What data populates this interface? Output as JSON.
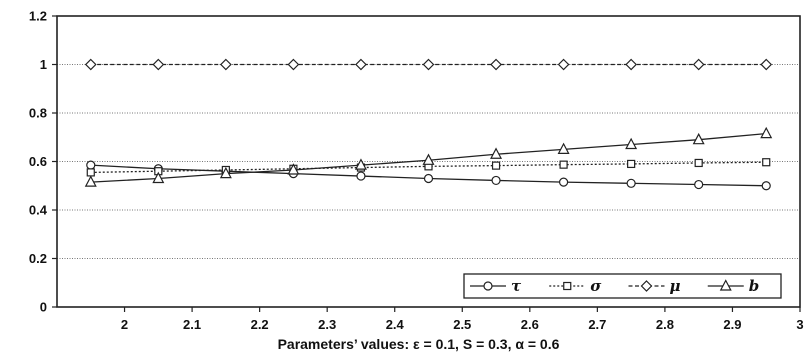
{
  "chart_data": {
    "type": "line",
    "x": [
      1.95,
      2.05,
      2.15,
      2.25,
      2.35,
      2.45,
      2.55,
      2.65,
      2.75,
      2.85,
      2.95
    ],
    "series": [
      {
        "name": "τ",
        "marker": "circle",
        "dash": "solid",
        "values": [
          0.585,
          0.57,
          0.56,
          0.55,
          0.54,
          0.53,
          0.522,
          0.515,
          0.51,
          0.505,
          0.5
        ]
      },
      {
        "name": "σ",
        "marker": "square",
        "dash": "dotted",
        "values": [
          0.555,
          0.56,
          0.565,
          0.57,
          0.575,
          0.58,
          0.583,
          0.587,
          0.59,
          0.594,
          0.597
        ]
      },
      {
        "name": "μ",
        "marker": "diamond",
        "dash": "dashed",
        "values": [
          1,
          1,
          1,
          1,
          1,
          1,
          1,
          1,
          1,
          1,
          1
        ]
      },
      {
        "name": "b",
        "marker": "triangle",
        "dash": "solid",
        "values": [
          0.515,
          0.53,
          0.55,
          0.565,
          0.585,
          0.605,
          0.63,
          0.65,
          0.67,
          0.69,
          0.715
        ]
      }
    ],
    "xlim": [
      1.9,
      3.0
    ],
    "ylim": [
      0,
      1.2
    ],
    "xticks": [
      "2",
      "2.1",
      "2.2",
      "2.3",
      "2.4",
      "2.5",
      "2.6",
      "2.7",
      "2.8",
      "2.9",
      "3"
    ],
    "yticks": [
      "0",
      "0.2",
      "0.4",
      "0.6",
      "0.8",
      "1",
      "1.2"
    ],
    "xlabel": "Parameters’ values: ε = 0.1, S = 0.3,  α = 0.6",
    "ylabel": "",
    "grid": "horizontal",
    "legend": "bottom-right"
  }
}
